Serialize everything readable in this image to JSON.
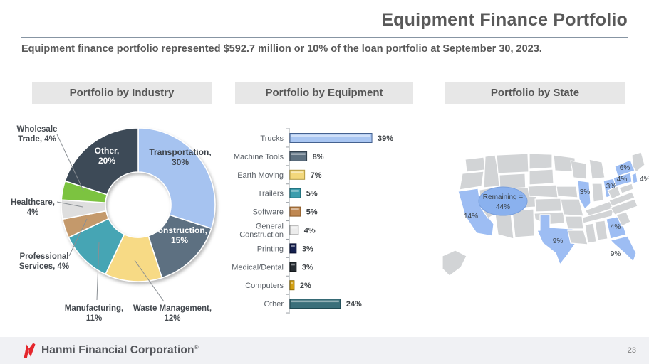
{
  "header": {
    "title": "Equipment Finance Portfolio",
    "subtitle": "Equipment finance portfolio represented $592.7 million or 10% of the loan portfolio at September 30, 2023."
  },
  "sections": {
    "industry": "Portfolio by Industry",
    "equipment": "Portfolio by Equipment",
    "state": "Portfolio by State"
  },
  "chart_data": [
    {
      "type": "pie",
      "subtype": "donut",
      "title": "Portfolio by Industry",
      "categories": [
        "Transportation",
        "Construction",
        "Waste Management",
        "Manufacturing",
        "Professional Services",
        "Healthcare",
        "Wholesale Trade",
        "Other"
      ],
      "values": [
        30,
        15,
        12,
        11,
        4,
        4,
        4,
        20
      ],
      "colors": [
        "#a6c3f0",
        "#5d7081",
        "#f7da85",
        "#46a5b4",
        "#c4996b",
        "#dedede",
        "#7cc340",
        "#3d4a57"
      ],
      "label_lines": [
        [
          "Transportation,",
          "30%"
        ],
        [
          "Construction,",
          "15%"
        ],
        [
          "Waste Management,",
          "12%"
        ],
        [
          "Manufacturing,",
          "11%"
        ],
        [
          "Professional",
          "Services, 4%"
        ],
        [
          "Healthcare,",
          "4%"
        ],
        [
          "Wholesale",
          "Trade, 4%"
        ],
        [
          "Other,",
          "20%"
        ]
      ]
    },
    {
      "type": "bar",
      "orientation": "horizontal",
      "title": "Portfolio by Equipment",
      "categories": [
        "Trucks",
        "Machine Tools",
        "Earth Moving",
        "Trailers",
        "Software",
        "General Construction",
        "Printing",
        "Medical/Dental",
        "Computers",
        "Other"
      ],
      "values": [
        39,
        8,
        7,
        5,
        5,
        4,
        3,
        3,
        2,
        24
      ],
      "value_labels": [
        "39%",
        "8%",
        "7%",
        "5%",
        "5%",
        "4%",
        "3%",
        "3%",
        "2%",
        "24%"
      ],
      "colors": [
        "#a9c6f2",
        "#5d7080",
        "#f3d87c",
        "#3c9dad",
        "#bf8751",
        "#ececec",
        "#15204f",
        "#272d33",
        "#d3a013",
        "#3a6f7a"
      ],
      "border_colors": [
        "#44618f",
        "#2f3c49",
        "#b39a42",
        "#19646f",
        "#8c5a28",
        "#8f8f8f",
        "#080e2e",
        "#0c0f12",
        "#8f6c06",
        "#1c454e"
      ]
    },
    {
      "type": "map",
      "title": "Portfolio by State",
      "highlight_color": "#9dbdf3",
      "base_color": "#d2d4d6",
      "states": [
        {
          "code": "CA",
          "value": 14,
          "label": "14%"
        },
        {
          "code": "TX",
          "value": 9,
          "label": "9%"
        },
        {
          "code": "IL",
          "value": 3,
          "label": "3%"
        },
        {
          "code": "OH",
          "value": 3,
          "label": "3%"
        },
        {
          "code": "NY",
          "value": 6,
          "label": "6%"
        },
        {
          "code": "PA",
          "value": 4,
          "label": "4%"
        },
        {
          "code": "NJ",
          "value": 4,
          "label": "4%"
        },
        {
          "code": "GA",
          "value": 4,
          "label": "4%"
        },
        {
          "code": "FL",
          "value": 9,
          "label": "9%"
        }
      ],
      "remaining": {
        "value": 44,
        "label_lines": [
          "Remaining =",
          "44%"
        ]
      }
    }
  ],
  "footer": {
    "brand": "Hanmi Financial Corporation",
    "trademark": "®",
    "page_number": "23"
  }
}
